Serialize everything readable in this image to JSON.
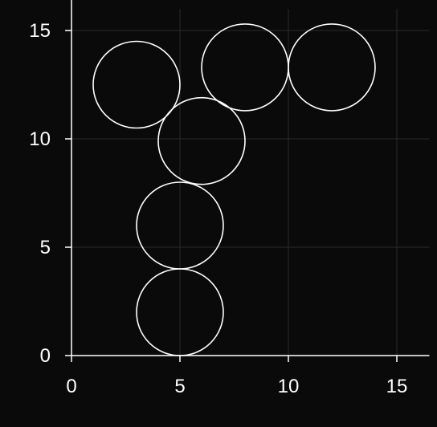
{
  "chart_data": {
    "type": "scatter",
    "title": "",
    "xlabel": "",
    "ylabel": "",
    "xlim": [
      0,
      16.5
    ],
    "ylim": [
      0,
      16
    ],
    "xticks": [
      0,
      5,
      10,
      15
    ],
    "yticks": [
      0,
      5,
      10,
      15
    ],
    "grid": true,
    "marker": "open-circle",
    "marker_radius": 2,
    "colors": {
      "background": "#0a0a0a",
      "marker": "#ffffff",
      "axis": "#ffffff",
      "grid": "#2a2a2a"
    },
    "points": [
      {
        "x": 5,
        "y": 2
      },
      {
        "x": 5,
        "y": 6
      },
      {
        "x": 6,
        "y": 9.9
      },
      {
        "x": 3,
        "y": 12.5
      },
      {
        "x": 8,
        "y": 13.3
      },
      {
        "x": 12,
        "y": 13.3
      }
    ]
  }
}
